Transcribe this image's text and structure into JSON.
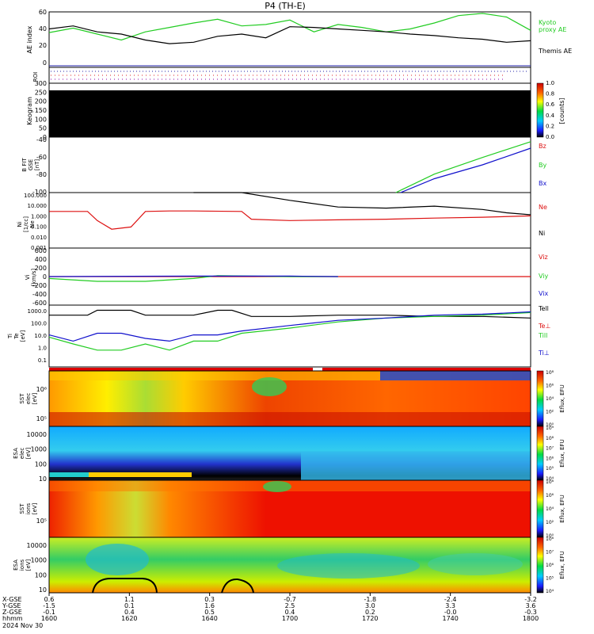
{
  "title": "P4 (TH-E)",
  "colors": {
    "green": "#22cc22",
    "black": "#000000",
    "red": "#dd1111",
    "blue": "#1111cc",
    "purple": "#8800aa"
  },
  "footer": {
    "row_labels": [
      "X-GSE",
      "Y-GSE",
      "Z-GSE",
      "hhmm",
      "2024 Nov 30"
    ],
    "x_gse": [
      "0.6",
      "1.1",
      "0.3",
      "-0.7",
      "-1.8",
      "-2.4",
      "-3.2"
    ],
    "y_gse": [
      "-1.5",
      "0.1",
      "1.6",
      "2.5",
      "3.0",
      "3.3",
      "3.6"
    ],
    "z_gse": [
      "-0.1",
      "0.4",
      "0.5",
      "0.4",
      "0.2",
      "-0.0",
      "-0.3"
    ],
    "hhmm": [
      "1600",
      "1620",
      "1640",
      "1700",
      "1720",
      "1740",
      "1800"
    ]
  },
  "panels": {
    "ae": {
      "ylabel": "AE index",
      "ticks": [
        "0",
        "20",
        "40",
        "60"
      ],
      "legend": [
        "Kyoto",
        "proxy AE",
        "Themis AE"
      ]
    },
    "roi": {
      "ylabel": "ROI"
    },
    "keogram": {
      "ylabel": "Keogram",
      "ticks": [
        "0",
        "50",
        "100",
        "150",
        "200",
        "250",
        "300"
      ],
      "cbar_ticks": [
        "0.0",
        "0.2",
        "0.4",
        "0.6",
        "0.8",
        "1.0"
      ],
      "cbar_label": "[counts]"
    },
    "bfield": {
      "ylabel": "B FIT",
      "ylabel2": "GSE",
      "ylabel3": "[nT]",
      "ticks": [
        "-100",
        "-80",
        "-60",
        "-40"
      ],
      "legend": [
        "Bz",
        "By",
        "Bx"
      ]
    },
    "density": {
      "ylabel": "Ni",
      "ylabel2": "[1/cc]",
      "ylabel3": "Ne",
      "ticks": [
        "0.001",
        "0.010",
        "0.100",
        "1.000",
        "10.000",
        "100.000"
      ],
      "legend": [
        "Ne",
        "Ni"
      ]
    },
    "velocity": {
      "ylabel": "Vi",
      "ylabel2": "[km/s]",
      "ticks": [
        "-600",
        "-400",
        "-200",
        "0",
        "200",
        "400",
        "600"
      ],
      "legend": [
        "Viz",
        "Viy",
        "Vix"
      ]
    },
    "temp": {
      "ylabel": "Ti",
      "ylabel2": "Te",
      "ylabel3": "[eV]",
      "ticks": [
        "0.1",
        "1.0",
        "10.0",
        "100.0",
        "1000.0"
      ],
      "legend": [
        "Tell",
        "Te⊥",
        "Till",
        "Ti⊥"
      ]
    },
    "sst_e": {
      "ylabel": "SST",
      "ylabel2": "elec",
      "ylabel3": "[eV]",
      "ticks": [
        "10⁵",
        "10⁶"
      ],
      "cbar_ticks": [
        "10⁰",
        "10²",
        "10⁴",
        "10⁶",
        "10⁸"
      ],
      "cbar_label": "Eflux, EFU"
    },
    "esa_e": {
      "ylabel": "ESA",
      "ylabel2": "elec",
      "ylabel3": "[eV]",
      "ticks": [
        "10",
        "100",
        "1000",
        "10000"
      ],
      "cbar_ticks": [
        "10⁴",
        "10⁵",
        "10⁶",
        "10⁷",
        "10⁸",
        "10⁹"
      ],
      "cbar_label": "Eflux, EFU"
    },
    "sst_i": {
      "ylabel": "SST",
      "ylabel2": "ions",
      "ylabel3": "[eV]",
      "ticks": [
        "10⁵"
      ],
      "cbar_ticks": [
        "10⁰",
        "10²",
        "10⁴",
        "10⁶",
        "10⁸"
      ],
      "cbar_label": "Eflux, EFU"
    },
    "esa_i": {
      "ylabel": "ESA",
      "ylabel2": "ions",
      "ylabel3": "[eV]",
      "ticks": [
        "10",
        "100",
        "1000",
        "10000"
      ],
      "cbar_ticks": [
        "10⁴",
        "10⁵",
        "10⁶",
        "10⁷",
        "10⁸"
      ],
      "cbar_label": "Eflux, EFU"
    }
  },
  "chart_data": [
    {
      "type": "line",
      "panel": "ae",
      "x_label": "hhmm",
      "ylim": [
        -10,
        65
      ],
      "series": [
        {
          "name": "Kyoto proxy AE",
          "color": "#22cc22",
          "x": [
            0,
            0.05,
            0.1,
            0.15,
            0.2,
            0.25,
            0.3,
            0.35,
            0.4,
            0.45,
            0.5,
            0.55,
            0.6,
            0.65,
            0.7,
            0.75,
            0.8,
            0.85,
            0.9,
            0.95,
            1.0
          ],
          "y": [
            37,
            43,
            35,
            27,
            38,
            44,
            50,
            55,
            46,
            48,
            54,
            38,
            48,
            44,
            38,
            42,
            50,
            60,
            63,
            58,
            40
          ]
        },
        {
          "name": "Themis AE",
          "color": "#000000",
          "x": [
            0,
            0.05,
            0.1,
            0.15,
            0.2,
            0.25,
            0.3,
            0.35,
            0.4,
            0.45,
            0.5,
            0.55,
            0.6,
            0.65,
            0.7,
            0.75,
            0.8,
            0.85,
            0.9,
            0.95,
            1.0
          ],
          "y": [
            42,
            46,
            38,
            35,
            27,
            22,
            24,
            32,
            35,
            30,
            45,
            44,
            42,
            40,
            38,
            35,
            33,
            30,
            28,
            24,
            26
          ]
        }
      ]
    },
    {
      "type": "line",
      "panel": "bfield",
      "ylim": [
        -100,
        -40
      ],
      "series": [
        {
          "name": "By",
          "color": "#22cc22",
          "x": [
            0.72,
            0.8,
            0.9,
            1.0
          ],
          "y": [
            -100,
            -80,
            -62,
            -45
          ]
        },
        {
          "name": "Bx",
          "color": "#1111cc",
          "x": [
            0.73,
            0.8,
            0.9,
            1.0
          ],
          "y": [
            -100,
            -85,
            -70,
            -52
          ]
        }
      ]
    },
    {
      "type": "line",
      "panel": "density",
      "log": true,
      "ylim": [
        0.001,
        100
      ],
      "series": [
        {
          "name": "Ne",
          "color": "#dd1111",
          "x": [
            0,
            0.08,
            0.1,
            0.13,
            0.17,
            0.2,
            0.25,
            0.3,
            0.4,
            0.42,
            0.5,
            0.6,
            0.7,
            0.8,
            0.9,
            1.0
          ],
          "y": [
            2,
            2,
            0.3,
            0.05,
            0.08,
            2,
            2.2,
            2.2,
            2,
            0.4,
            0.3,
            0.35,
            0.4,
            0.5,
            0.6,
            0.8
          ]
        },
        {
          "name": "Ni",
          "color": "#000000",
          "x": [
            0.3,
            0.4,
            0.5,
            0.6,
            0.7,
            0.8,
            0.9,
            0.95,
            1.0
          ],
          "y": [
            100,
            100,
            20,
            5,
            4,
            6,
            3,
            1.5,
            1
          ]
        }
      ]
    },
    {
      "type": "line",
      "panel": "velocity",
      "ylim": [
        -600,
        600
      ],
      "series": [
        {
          "name": "Viz",
          "color": "#dd1111",
          "x": [
            0,
            1.0
          ],
          "y": [
            0,
            0
          ]
        },
        {
          "name": "Viy",
          "color": "#22cc22",
          "x": [
            0,
            0.1,
            0.2,
            0.3,
            0.35,
            0.5,
            0.6
          ],
          "y": [
            -40,
            -100,
            -100,
            -40,
            20,
            0,
            0
          ]
        },
        {
          "name": "Vix",
          "color": "#1111cc",
          "x": [
            0,
            0.3,
            0.5,
            0.6
          ],
          "y": [
            0,
            10,
            10,
            0
          ]
        }
      ]
    },
    {
      "type": "line",
      "panel": "temp",
      "log": true,
      "ylim": [
        0.05,
        3000
      ],
      "series": [
        {
          "name": "Tell",
          "color": "#000000",
          "x": [
            0,
            0.08,
            0.1,
            0.17,
            0.2,
            0.3,
            0.35,
            0.38,
            0.42,
            0.5,
            0.6,
            0.7,
            0.8,
            0.9,
            1.0
          ],
          "y": [
            500,
            500,
            1200,
            1200,
            500,
            500,
            1200,
            1200,
            400,
            400,
            500,
            500,
            400,
            400,
            300
          ]
        },
        {
          "name": "Till",
          "color": "#22cc22",
          "x": [
            0,
            0.05,
            0.1,
            0.15,
            0.2,
            0.25,
            0.3,
            0.35,
            0.4,
            0.5,
            0.6,
            0.7,
            0.8,
            0.9,
            1.0
          ],
          "y": [
            10,
            3,
            1,
            1,
            3,
            1,
            5,
            5,
            20,
            50,
            150,
            300,
            400,
            500,
            800
          ]
        },
        {
          "name": "Ti⊥",
          "color": "#1111cc",
          "x": [
            0,
            0.05,
            0.1,
            0.15,
            0.2,
            0.25,
            0.3,
            0.35,
            0.4,
            0.5,
            0.6,
            0.7,
            0.8,
            0.9,
            1.0
          ],
          "y": [
            15,
            5,
            20,
            20,
            8,
            5,
            15,
            15,
            30,
            80,
            200,
            300,
            500,
            600,
            900
          ]
        }
      ]
    }
  ]
}
